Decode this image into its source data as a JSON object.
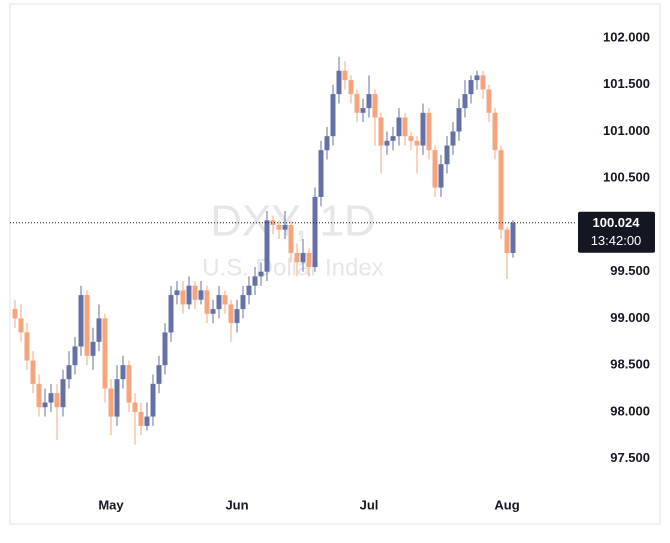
{
  "chart_data": {
    "type": "candlestick",
    "title": "DXY, 1D",
    "subtitle": "U.S. Dollar Index",
    "up_color": "#6471a6",
    "down_color": "#f5a47c",
    "last_price": 100.024,
    "countdown": "13:42:00",
    "categories": [
      null,
      null,
      null,
      null,
      null,
      null,
      null,
      null,
      null,
      null,
      null,
      null,
      null,
      null,
      null,
      null,
      "May",
      null,
      null,
      null,
      null,
      null,
      null,
      null,
      null,
      null,
      null,
      null,
      null,
      null,
      null,
      null,
      null,
      null,
      null,
      null,
      null,
      "Jun",
      null,
      null,
      null,
      null,
      null,
      null,
      null,
      null,
      null,
      null,
      null,
      null,
      null,
      null,
      null,
      null,
      null,
      null,
      null,
      null,
      null,
      "Jul",
      null,
      null,
      null,
      null,
      null,
      null,
      null,
      null,
      null,
      null,
      null,
      null,
      null,
      null,
      null,
      null,
      null,
      null,
      null,
      null,
      null,
      null,
      "Aug",
      null
    ],
    "open": [
      99.1,
      99.0,
      98.85,
      98.55,
      98.3,
      98.05,
      98.1,
      98.2,
      98.05,
      98.35,
      98.5,
      98.7,
      99.25,
      98.6,
      98.75,
      99.0,
      98.25,
      97.95,
      98.35,
      98.5,
      98.1,
      98.0,
      97.85,
      97.95,
      98.3,
      98.5,
      98.85,
      99.25,
      99.3,
      99.15,
      99.35,
      99.2,
      99.3,
      99.05,
      99.1,
      99.25,
      99.15,
      98.95,
      99.1,
      99.25,
      99.35,
      99.45,
      99.5,
      100.05,
      100.0,
      99.95,
      100.0,
      99.7,
      99.6,
      99.7,
      99.55,
      100.3,
      100.8,
      100.95,
      101.4,
      101.65,
      101.55,
      101.4,
      101.2,
      101.25,
      101.4,
      101.15,
      100.85,
      100.9,
      100.95,
      101.15,
      100.95,
      100.9,
      100.85,
      101.2,
      100.8,
      100.4,
      100.65,
      100.85,
      101.0,
      101.25,
      101.4,
      101.55,
      101.6,
      101.45,
      101.2,
      100.8,
      99.95,
      99.7
    ],
    "high": [
      99.2,
      99.15,
      98.95,
      98.65,
      98.4,
      98.25,
      98.3,
      98.3,
      98.45,
      98.65,
      98.8,
      99.35,
      99.3,
      98.9,
      99.15,
      99.05,
      98.35,
      98.5,
      98.6,
      98.55,
      98.2,
      98.1,
      98.1,
      98.4,
      98.6,
      98.95,
      99.35,
      99.4,
      99.4,
      99.45,
      99.4,
      99.4,
      99.35,
      99.2,
      99.35,
      99.3,
      99.2,
      99.2,
      99.35,
      99.45,
      99.55,
      99.6,
      100.15,
      100.1,
      100.05,
      100.15,
      100.05,
      99.8,
      99.85,
      99.75,
      100.4,
      100.9,
      101.05,
      101.5,
      101.8,
      101.75,
      101.6,
      101.45,
      101.35,
      101.6,
      101.45,
      101.2,
      101.0,
      101.05,
      101.25,
      101.2,
      101.0,
      100.95,
      101.3,
      101.25,
      100.85,
      100.75,
      100.95,
      101.1,
      101.35,
      101.55,
      101.6,
      101.65,
      101.65,
      101.5,
      101.25,
      100.85,
      99.98,
      100.05
    ],
    "low": [
      98.9,
      98.75,
      98.45,
      98.2,
      97.95,
      97.95,
      98.0,
      97.7,
      97.95,
      98.25,
      98.4,
      98.6,
      98.5,
      98.45,
      98.65,
      98.1,
      97.75,
      97.85,
      98.25,
      98.0,
      97.65,
      97.75,
      97.8,
      97.85,
      98.2,
      98.4,
      98.75,
      99.15,
      99.05,
      99.1,
      99.1,
      99.15,
      98.95,
      98.95,
      99.0,
      99.05,
      98.75,
      98.85,
      99.0,
      99.15,
      99.25,
      99.35,
      99.4,
      99.9,
      99.85,
      99.85,
      99.6,
      99.45,
      99.5,
      99.45,
      99.5,
      100.2,
      100.7,
      100.85,
      101.3,
      101.45,
      101.3,
      101.1,
      101.1,
      101.15,
      100.85,
      100.55,
      100.75,
      100.8,
      100.85,
      100.85,
      100.8,
      100.55,
      100.75,
      100.7,
      100.3,
      100.3,
      100.55,
      100.75,
      100.9,
      101.15,
      101.3,
      101.45,
      101.35,
      101.1,
      100.7,
      99.85,
      99.42,
      99.65
    ],
    "close": [
      99.0,
      98.85,
      98.55,
      98.3,
      98.05,
      98.1,
      98.2,
      98.05,
      98.35,
      98.5,
      98.7,
      99.25,
      98.6,
      98.75,
      99.0,
      98.25,
      97.95,
      98.35,
      98.5,
      98.1,
      98.0,
      97.85,
      97.95,
      98.3,
      98.5,
      98.85,
      99.25,
      99.3,
      99.15,
      99.35,
      99.2,
      99.3,
      99.05,
      99.1,
      99.25,
      99.15,
      98.95,
      99.1,
      99.25,
      99.35,
      99.45,
      99.5,
      100.05,
      100.0,
      99.95,
      100.0,
      99.7,
      99.6,
      99.7,
      99.55,
      100.3,
      100.8,
      100.95,
      101.4,
      101.65,
      101.55,
      101.4,
      101.2,
      101.25,
      101.4,
      101.15,
      100.85,
      100.9,
      100.95,
      101.15,
      100.95,
      100.9,
      100.85,
      101.2,
      100.8,
      100.4,
      100.65,
      100.85,
      101.0,
      101.25,
      101.4,
      101.55,
      101.6,
      101.45,
      101.2,
      100.8,
      99.95,
      99.7,
      100.024
    ],
    "ylim": [
      97.1,
      102.3
    ],
    "yticks": [
      {
        "value": 97.5,
        "label": "97.500"
      },
      {
        "value": 98,
        "label": "98.000"
      },
      {
        "value": 98.5,
        "label": "98.500"
      },
      {
        "value": 99,
        "label": "99.000"
      },
      {
        "value": 99.5,
        "label": "99.500"
      },
      {
        "value": 100,
        "label": "100.000"
      },
      {
        "value": 100.5,
        "label": "100.500"
      },
      {
        "value": 101,
        "label": "101.000"
      },
      {
        "value": 101.5,
        "label": "101.500"
      },
      {
        "value": 102,
        "label": "102.000"
      }
    ]
  }
}
